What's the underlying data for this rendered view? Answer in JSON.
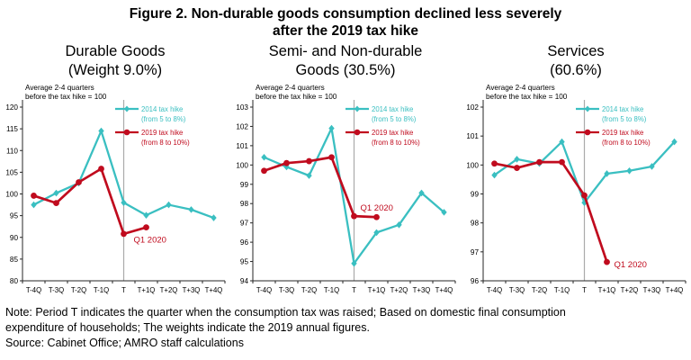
{
  "figure": {
    "title_line1": "Figure 2. Non-durable goods consumption declined less severely",
    "title_line2": "after the 2019 tax hike"
  },
  "legend": {
    "s2014_line1": "2014 tax hike",
    "s2014_line2": "(from 5 to 8%)",
    "s2019_line1": "2019 tax hike",
    "s2019_line2": "(from 8 to 10%)"
  },
  "colors": {
    "series_2014": "#3ABFC1",
    "series_2019": "#C00B1E",
    "divider_line": "#ABABAB",
    "axis": "#262626"
  },
  "notes": {
    "note_line1": "Note: Period T indicates the quarter when the consumption tax was raised; Based on domestic final consumption",
    "note_line2": "expenditure of households; The weights indicate the 2019 annual figures.",
    "source_line": "Source: Cabinet Office; AMRO staff calculations"
  },
  "chart_data": [
    {
      "type": "line",
      "title_line1": "Durable Goods",
      "title_line2": "(Weight 9.0%)",
      "axis_note_line1": "Average 2-4 quarters",
      "axis_note_line2": "before the tax hike = 100",
      "categories": [
        "T-4Q",
        "T-3Q",
        "T-2Q",
        "T-1Q",
        "T",
        "T+1Q",
        "T+2Q",
        "T+3Q",
        "T+4Q"
      ],
      "ylim": [
        80,
        120
      ],
      "ytick_step": 5,
      "grid": false,
      "legend_position": "top-right",
      "divider_at_category": "T",
      "series": [
        {
          "name": "2014 tax hike (from 5 to 8%)",
          "color_key": "series_2014",
          "marker": "diamond",
          "values": [
            97.5,
            100.2,
            102.5,
            114.5,
            98.0,
            95.1,
            97.5,
            96.4,
            94.5
          ]
        },
        {
          "name": "2019 tax hike (from 8 to 10%)",
          "color_key": "series_2019",
          "marker": "circle",
          "values": [
            99.6,
            97.9,
            102.7,
            105.8,
            90.8,
            92.3
          ],
          "end_label": "Q1 2020"
        }
      ]
    },
    {
      "type": "line",
      "title_line1": "Semi- and Non-durable",
      "title_line2": "Goods (30.5%)",
      "axis_note_line1": "Average 2-4 quarters",
      "axis_note_line2": "before the tax hike = 100",
      "categories": [
        "T-4Q",
        "T-3Q",
        "T-2Q",
        "T-1Q",
        "T",
        "T+1Q",
        "T+2Q",
        "T+3Q",
        "T+4Q"
      ],
      "ylim": [
        94,
        103
      ],
      "ytick_step": 1,
      "grid": false,
      "legend_position": "top-right",
      "divider_at_category": "T",
      "series": [
        {
          "name": "2014 tax hike (from 5 to 8%)",
          "color_key": "series_2014",
          "marker": "diamond",
          "values": [
            100.4,
            99.9,
            99.45,
            101.9,
            94.9,
            96.5,
            96.9,
            98.55,
            97.55
          ]
        },
        {
          "name": "2019 tax hike (from 8 to 10%)",
          "color_key": "series_2019",
          "marker": "circle",
          "values": [
            99.7,
            100.1,
            100.2,
            100.4,
            97.35,
            97.3
          ],
          "end_label": "Q1 2020"
        }
      ]
    },
    {
      "type": "line",
      "title_line1": "Services",
      "title_line2": "(60.6%)",
      "axis_note_line1": "Average 2-4 quarters",
      "axis_note_line2": "before the tax hike = 100",
      "categories": [
        "T-4Q",
        "T-3Q",
        "T-2Q",
        "T-1Q",
        "T",
        "T+1Q",
        "T+2Q",
        "T+3Q",
        "T+4Q"
      ],
      "ylim": [
        96,
        102
      ],
      "ytick_step": 1,
      "grid": false,
      "legend_position": "top-right",
      "divider_at_category": "T",
      "series": [
        {
          "name": "2014 tax hike (from 5 to 8%)",
          "color_key": "series_2014",
          "marker": "diamond",
          "values": [
            99.65,
            100.2,
            100.05,
            100.8,
            98.7,
            99.7,
            99.8,
            99.95,
            100.8
          ]
        },
        {
          "name": "2019 tax hike (from 8 to 10%)",
          "color_key": "series_2019",
          "marker": "circle",
          "values": [
            100.05,
            99.9,
            100.1,
            100.1,
            98.95,
            96.65
          ],
          "end_label": "Q1 2020"
        }
      ]
    }
  ]
}
